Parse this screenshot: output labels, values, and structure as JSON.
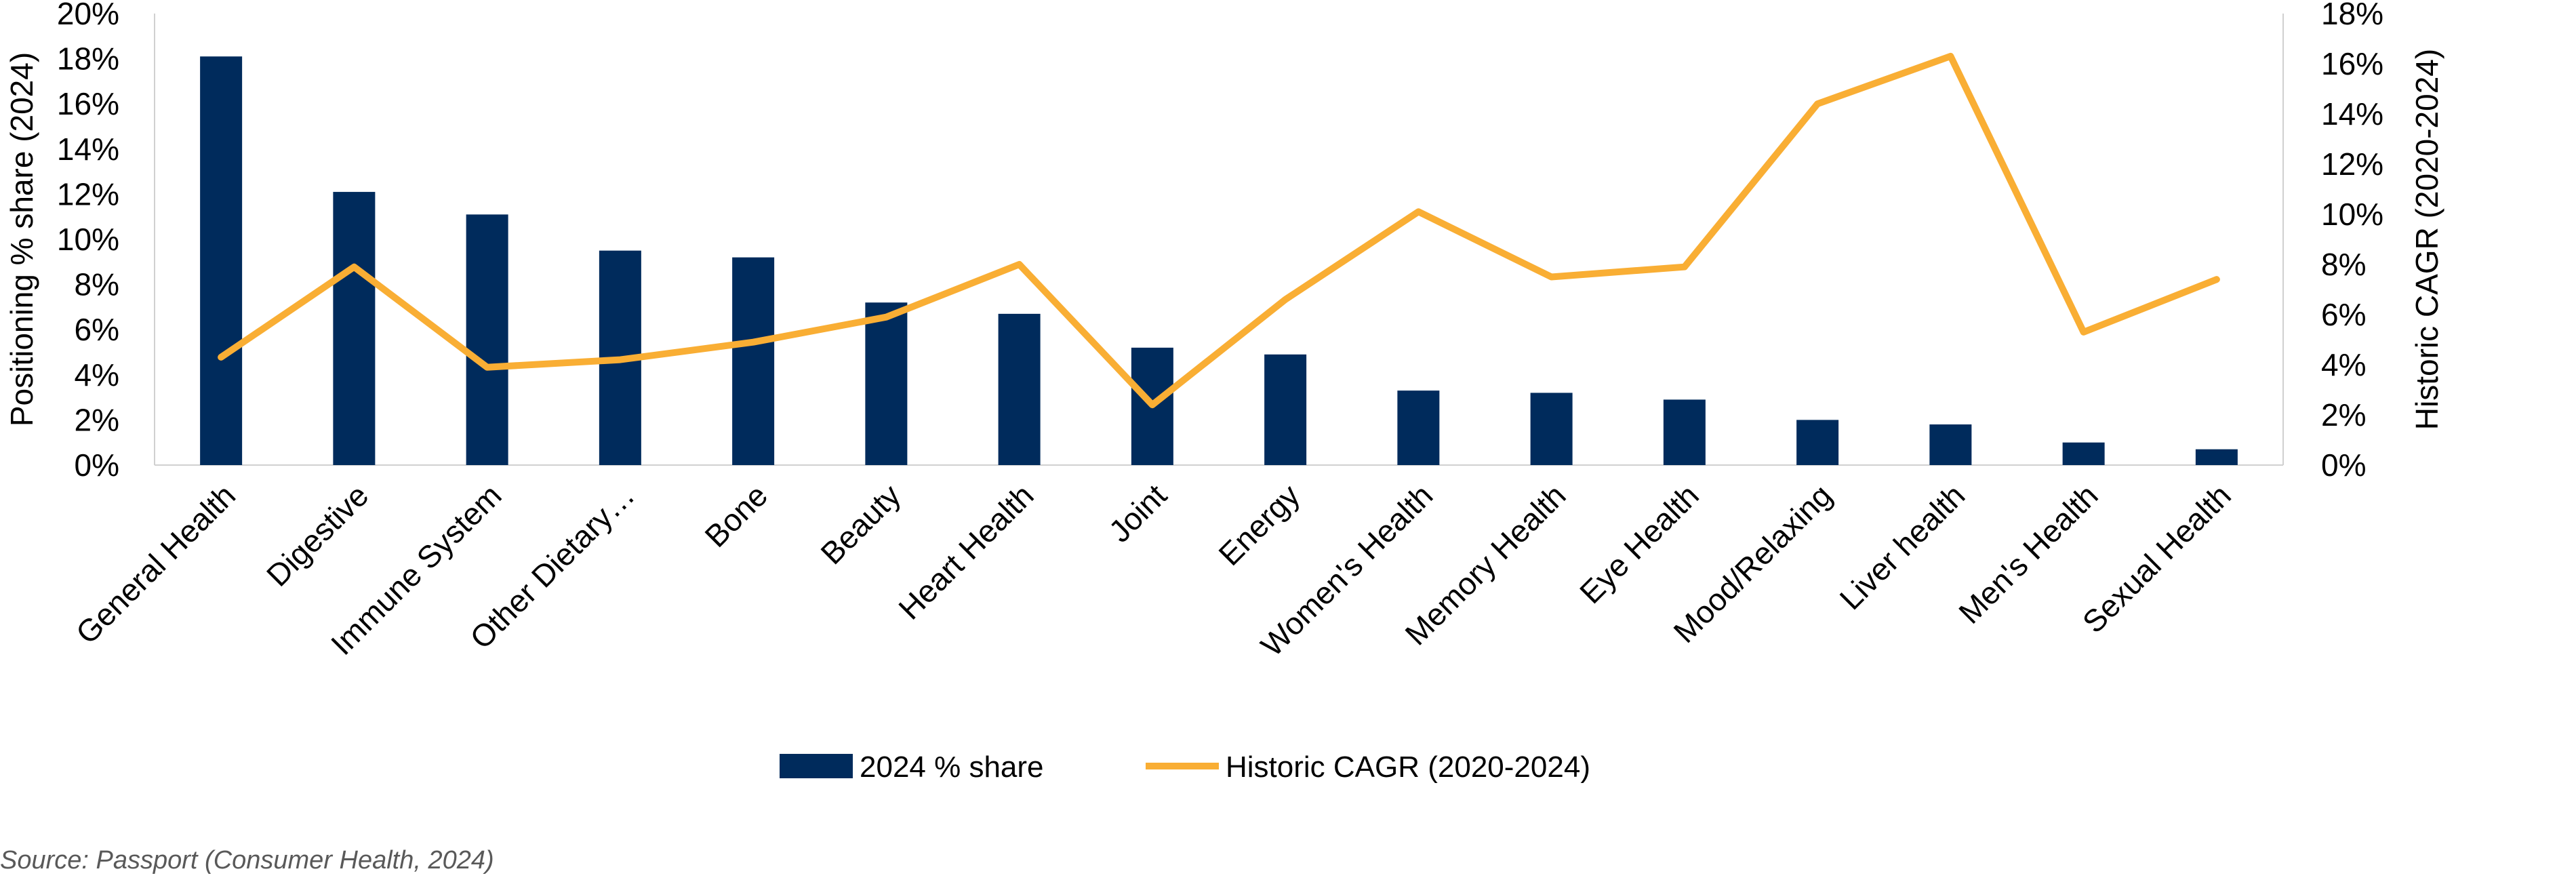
{
  "chart_data": {
    "type": "bar",
    "combo": "bar + line (secondary axis)",
    "categories": [
      "General Health",
      "Digestive",
      "Immune System",
      "Other Dietary…",
      "Bone",
      "Beauty",
      "Heart Health",
      "Joint",
      "Energy",
      "Women's Health",
      "Memory Health",
      "Eye Health",
      "Mood/Relaxing",
      "Liver health",
      "Men's Health",
      "Sexual Health"
    ],
    "series": [
      {
        "name": "2024 % share",
        "type": "bar",
        "axis": "left",
        "color": "#002B5C",
        "values": [
          18.1,
          12.1,
          11.1,
          9.5,
          9.2,
          7.2,
          6.7,
          5.2,
          4.9,
          3.3,
          3.2,
          2.9,
          2.0,
          1.8,
          1.0,
          0.7
        ]
      },
      {
        "name": "Historic CAGR (2020-2024)",
        "type": "line",
        "axis": "right",
        "color": "#F9AE34",
        "values": [
          4.3,
          7.9,
          3.9,
          4.2,
          4.9,
          5.9,
          8.0,
          2.4,
          6.6,
          10.1,
          7.5,
          7.9,
          14.4,
          16.3,
          5.3,
          7.4
        ]
      }
    ],
    "ylabel": "Positioning % share (2024)",
    "y2label": "Historic CAGR (2020-2024)",
    "ylim": [
      0,
      20
    ],
    "y2lim": [
      0,
      18
    ],
    "yticks": [
      "0%",
      "2%",
      "4%",
      "6%",
      "8%",
      "10%",
      "12%",
      "14%",
      "16%",
      "18%",
      "20%"
    ],
    "y2ticks": [
      "0%",
      "2%",
      "4%",
      "6%",
      "8%",
      "10%",
      "12%",
      "14%",
      "16%",
      "18%"
    ],
    "grid": false,
    "legend": "bottom-center"
  },
  "source": "Source: Passport (Consumer Health, 2024)"
}
